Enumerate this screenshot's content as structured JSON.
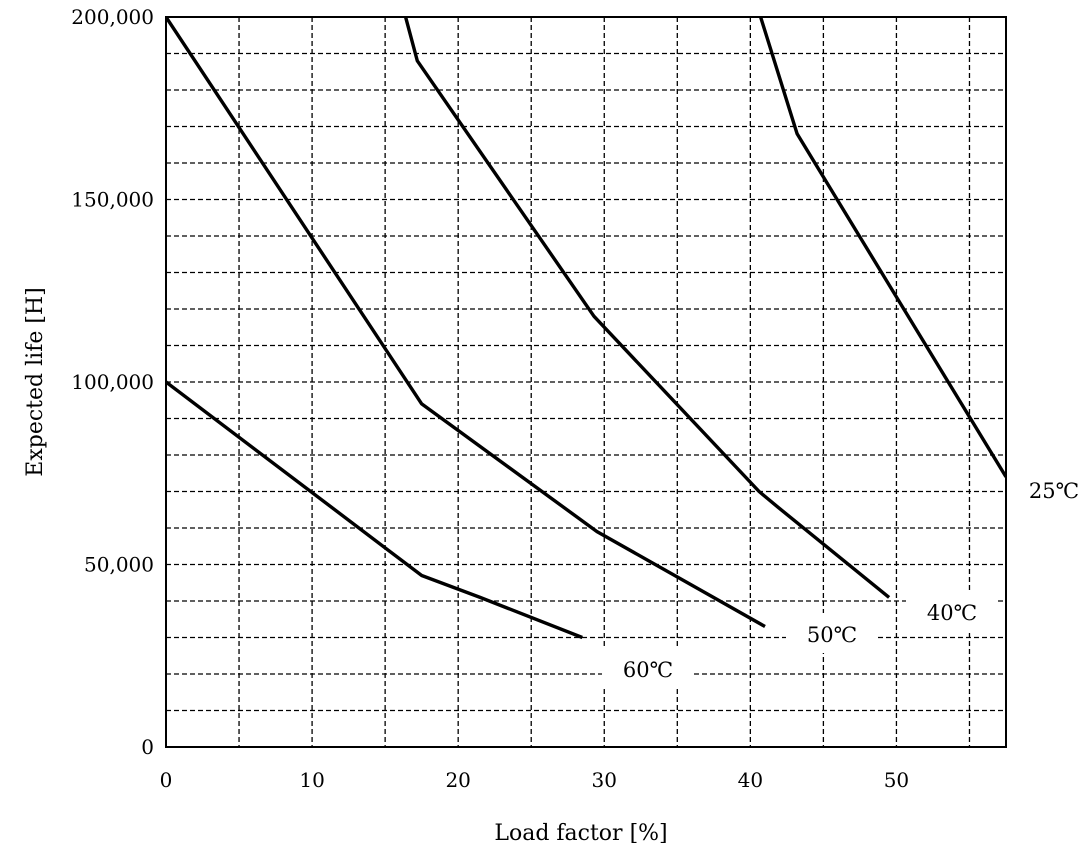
{
  "chart_data": {
    "type": "line",
    "xlabel": "Load factor [%]",
    "ylabel": "Expected life [H]",
    "title": "",
    "xlim": [
      0,
      57.5
    ],
    "ylim": [
      0,
      200000
    ],
    "x_ticks": [
      {
        "value": 0,
        "label": "0"
      },
      {
        "value": 10,
        "label": "10"
      },
      {
        "value": 20,
        "label": "20"
      },
      {
        "value": 30,
        "label": "30"
      },
      {
        "value": 40,
        "label": "40"
      },
      {
        "value": 50,
        "label": "50"
      }
    ],
    "y_ticks": [
      {
        "value": 0,
        "label": "0"
      },
      {
        "value": 50000,
        "label": "50,000"
      },
      {
        "value": 100000,
        "label": "100,000"
      },
      {
        "value": 150000,
        "label": "150,000"
      },
      {
        "value": 200000,
        "label": "200,000"
      }
    ],
    "x_minor_step": 5,
    "y_minor_step": 10000,
    "grid": true,
    "grid_style": "dashed",
    "series": [
      {
        "name": "25℃",
        "points": [
          [
            40.7,
            200000
          ],
          [
            43.2,
            168000
          ],
          [
            57.5,
            74000
          ]
        ]
      },
      {
        "name": "40℃",
        "points": [
          [
            16.4,
            200000
          ],
          [
            17.2,
            188000
          ],
          [
            29.3,
            118000
          ],
          [
            40.6,
            70000
          ],
          [
            41.8,
            66000
          ],
          [
            49.5,
            41000
          ]
        ]
      },
      {
        "name": "50℃",
        "points": [
          [
            0,
            200000
          ],
          [
            17.5,
            94000
          ],
          [
            29.5,
            59000
          ],
          [
            41,
            33000
          ]
        ]
      },
      {
        "name": "60℃",
        "points": [
          [
            0,
            100000
          ],
          [
            17.5,
            47000
          ],
          [
            21.5,
            41000
          ],
          [
            28.5,
            30000
          ]
        ]
      }
    ]
  }
}
